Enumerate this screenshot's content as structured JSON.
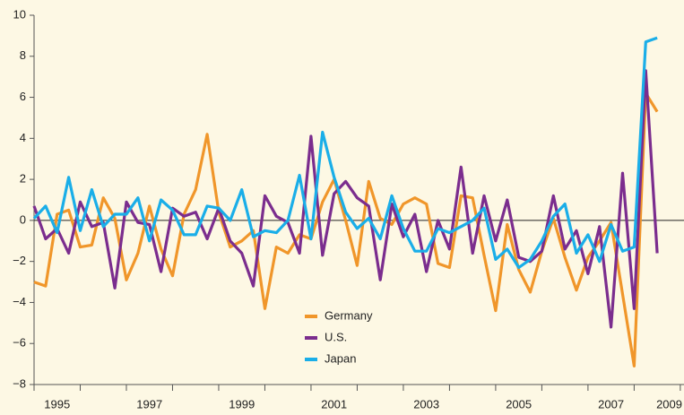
{
  "chart_data": {
    "type": "line",
    "x": [
      1995,
      1995.25,
      1995.5,
      1995.75,
      1996,
      1996.25,
      1996.5,
      1996.75,
      1997,
      1997.25,
      1997.5,
      1997.75,
      1998,
      1998.25,
      1998.5,
      1998.75,
      1999,
      1999.25,
      1999.5,
      1999.75,
      2000,
      2000.25,
      2000.5,
      2000.75,
      2001,
      2001.25,
      2001.5,
      2001.75,
      2002,
      2002.25,
      2002.5,
      2002.75,
      2003,
      2003.25,
      2003.5,
      2003.75,
      2004,
      2004.25,
      2004.5,
      2004.75,
      2005,
      2005.25,
      2005.5,
      2005.75,
      2006,
      2006.25,
      2006.5,
      2006.75,
      2007,
      2007.25,
      2007.5,
      2007.75,
      2008,
      2008.25,
      2008.5
    ],
    "series": [
      {
        "name": "Germany",
        "color": "#f0962a",
        "values": [
          -3.0,
          -3.2,
          0.3,
          0.5,
          -1.3,
          -1.2,
          1.1,
          0.1,
          -2.9,
          -1.6,
          0.7,
          -1.4,
          -2.7,
          0.3,
          1.5,
          4.2,
          0.4,
          -1.3,
          -1.0,
          -0.5,
          -4.3,
          -1.3,
          -1.6,
          -0.7,
          -0.9,
          0.9,
          2.0,
          0.0,
          -2.2,
          1.9,
          0.1,
          -0.2,
          0.8,
          1.1,
          0.8,
          -2.1,
          -2.3,
          1.2,
          1.1,
          -1.7,
          -4.4,
          -0.2,
          -2.4,
          -3.5,
          -1.5,
          0.1,
          -1.8,
          -3.4,
          -1.8,
          -1.0,
          -0.1,
          -3.6,
          -7.1,
          6.2,
          5.3
        ]
      },
      {
        "name": "U.S.",
        "color": "#7b2d8e",
        "values": [
          0.7,
          -0.9,
          -0.4,
          -1.6,
          0.9,
          -0.3,
          -0.1,
          -3.3,
          0.9,
          -0.1,
          -0.2,
          -2.5,
          0.6,
          0.2,
          0.4,
          -0.9,
          0.6,
          -1.0,
          -1.6,
          -3.2,
          1.2,
          0.2,
          -0.1,
          -1.6,
          4.1,
          -1.7,
          1.3,
          1.9,
          1.1,
          0.7,
          -2.9,
          0.8,
          -0.8,
          0.3,
          -2.5,
          0.0,
          -1.4,
          2.6,
          -1.6,
          1.2,
          -1.0,
          1.0,
          -1.8,
          -2.0,
          -1.5,
          1.2,
          -1.4,
          -0.5,
          -2.6,
          -0.3,
          -5.2,
          2.3,
          -4.3,
          7.3,
          -1.6
        ]
      },
      {
        "name": "Japan",
        "color": "#1aaee8",
        "values": [
          0.1,
          0.7,
          -0.6,
          2.1,
          -0.5,
          1.5,
          -0.3,
          0.3,
          0.3,
          1.1,
          -1.0,
          1.0,
          0.5,
          -0.7,
          -0.7,
          0.7,
          0.6,
          0.0,
          1.5,
          -0.8,
          -0.5,
          -0.6,
          0.0,
          2.2,
          -0.9,
          4.3,
          2.1,
          0.4,
          -0.4,
          0.1,
          -0.9,
          1.2,
          -0.4,
          -1.5,
          -1.5,
          -0.4,
          -0.6,
          -0.3,
          0.0,
          0.6,
          -1.9,
          -1.4,
          -2.3,
          -1.9,
          -1.0,
          0.2,
          0.8,
          -1.6,
          -0.7,
          -2.0,
          -0.2,
          -1.5,
          -1.3,
          8.7,
          8.9
        ]
      }
    ],
    "xlim": [
      1995,
      2009.08
    ],
    "xticks": [
      {
        "value": 1995.5,
        "label": "1995"
      },
      {
        "value": 1997.5,
        "label": "1997"
      },
      {
        "value": 1999.5,
        "label": "1999"
      },
      {
        "value": 2001.5,
        "label": "2001"
      },
      {
        "value": 2003.5,
        "label": "2003"
      },
      {
        "value": 2005.5,
        "label": "2005"
      },
      {
        "value": 2007.5,
        "label": "2007"
      },
      {
        "value": 2009.5,
        "label": "2009"
      }
    ],
    "x_tick_marks": [
      1995,
      1996,
      1997,
      1998,
      1999,
      2000,
      2001,
      2002,
      2003,
      2004,
      2005,
      2006,
      2007,
      2008,
      2009
    ],
    "ylim": [
      -8,
      10
    ],
    "yticks": [
      {
        "value": -8,
        "label": "−8"
      },
      {
        "value": -6,
        "label": "−6"
      },
      {
        "value": -4,
        "label": "−4"
      },
      {
        "value": -2,
        "label": "−2"
      },
      0,
      2,
      4,
      6,
      8,
      10
    ],
    "zero_line": true
  }
}
